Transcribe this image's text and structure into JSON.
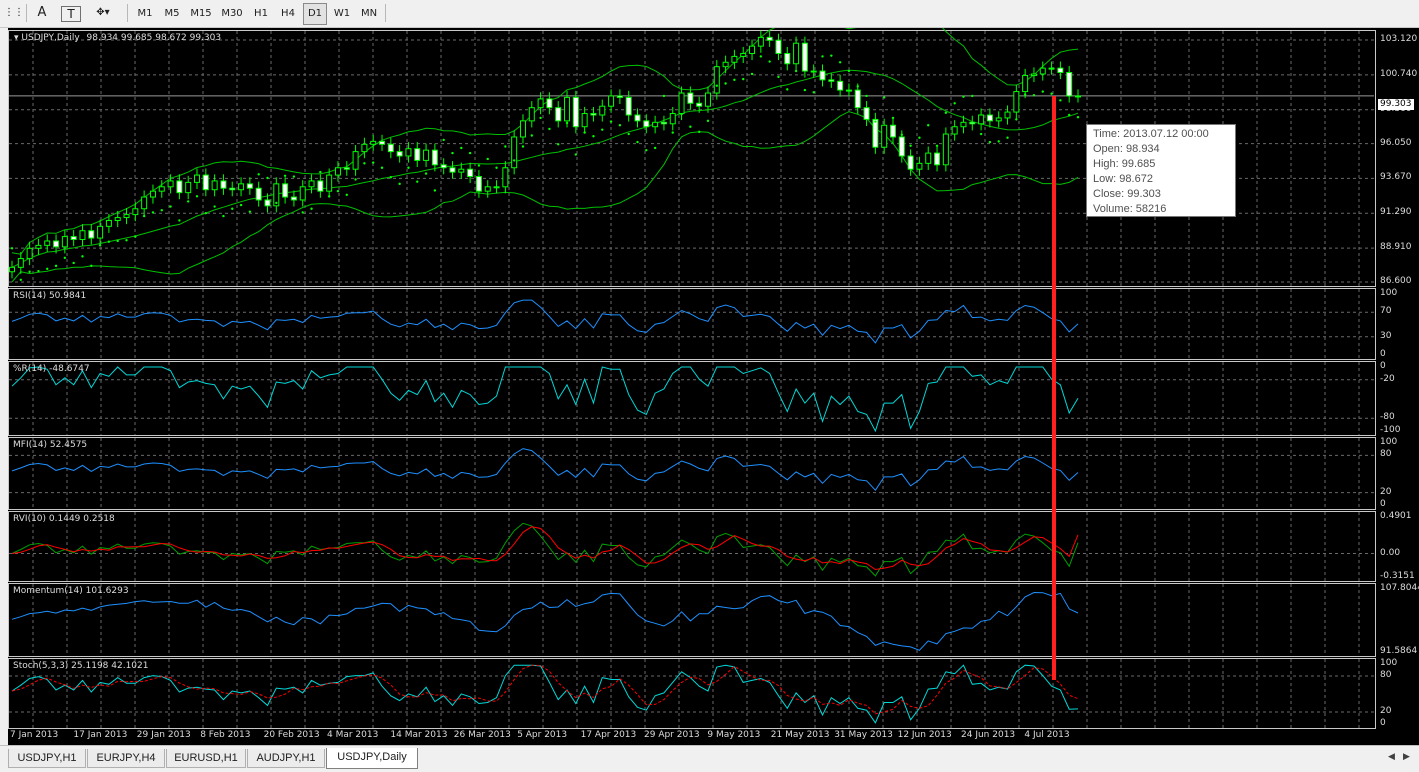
{
  "toolbar": {
    "timeframes": [
      "M1",
      "M5",
      "M15",
      "M30",
      "H1",
      "H4",
      "D1",
      "W1",
      "MN"
    ],
    "active_timeframe": "D1"
  },
  "main_header": {
    "symbol": "USDJPY,Daily",
    "ohlc": "98.934 99.685 98.672 99.303"
  },
  "price_axis": {
    "ticks": [
      "103.120",
      "100.740",
      "98.360",
      "96.050",
      "93.670",
      "91.290",
      "88.910",
      "86.600"
    ],
    "current_price": "99.303"
  },
  "indicators": [
    {
      "label": "RSI(14) 50.9841",
      "ticks": [
        "100",
        "70",
        "30",
        "0"
      ]
    },
    {
      "label": "%R(14) -48.6747",
      "ticks": [
        "0",
        "-20",
        "-80",
        "-100"
      ]
    },
    {
      "label": "MFI(14) 52.4575",
      "ticks": [
        "100",
        "80",
        "20",
        "0"
      ]
    },
    {
      "label": "RVI(10) 0.1449 0.2518",
      "ticks": [
        "0.4901",
        "0.00",
        "-0.3151"
      ]
    },
    {
      "label": "Momentum(14) 101.6293",
      "ticks": [
        "107.8044",
        "91.5864"
      ]
    },
    {
      "label": "Stoch(5,3,3) 25.1198 42.1021",
      "ticks": [
        "100",
        "80",
        "20",
        "0"
      ]
    }
  ],
  "time_axis": [
    "7 Jan 2013",
    "17 Jan 2013",
    "29 Jan 2013",
    "8 Feb 2013",
    "20 Feb 2013",
    "4 Mar 2013",
    "14 Mar 2013",
    "26 Mar 2013",
    "5 Apr 2013",
    "17 Apr 2013",
    "29 Apr 2013",
    "9 May 2013",
    "21 May 2013",
    "31 May 2013",
    "12 Jun 2013",
    "24 Jun 2013",
    "4 Jul 2013"
  ],
  "tooltip": {
    "time": "Time: 2013.07.12 00:00",
    "open": "Open: 98.934",
    "high": "High: 99.685",
    "low": "Low:  98.672",
    "close": "Close: 99.303",
    "volume": "Volume: 58216"
  },
  "tabs": [
    "USDJPY,H1",
    "EURJPY,H4",
    "EURUSD,H1",
    "AUDJPY,H1",
    "USDJPY,Daily"
  ],
  "active_tab": "USDJPY,Daily",
  "colors": {
    "background": "#000000",
    "candle": "#00ff00",
    "bands": "#00c000",
    "rsi_line": "#1e90ff",
    "wpr_line": "#00d8d8",
    "rvi_main": "#00a000",
    "rvi_signal": "#ff0000",
    "stoch_signal": "#ff0000",
    "marker": "#ff2020"
  },
  "chart_data": {
    "type": "candlestick",
    "symbol": "USDJPY",
    "timeframe": "Daily",
    "last_bar": {
      "time": "2013.07.12 00:00",
      "open": 98.934,
      "high": 99.685,
      "low": 98.672,
      "close": 99.303,
      "volume": 58216
    },
    "ylim": [
      86.6,
      103.12
    ],
    "close_approx": [
      87.6,
      88.2,
      88.9,
      89.1,
      89.4,
      89.0,
      89.7,
      89.5,
      90.1,
      89.6,
      90.4,
      90.8,
      91.0,
      91.2,
      91.6,
      92.4,
      92.8,
      93.1,
      93.5,
      92.7,
      93.4,
      93.9,
      92.9,
      93.5,
      93.0,
      92.9,
      93.3,
      93.0,
      92.2,
      91.8,
      93.3,
      92.4,
      92.2,
      93.1,
      93.5,
      92.8,
      93.9,
      94.4,
      94.3,
      95.5,
      96.0,
      96.2,
      96.0,
      95.5,
      95.2,
      95.7,
      94.9,
      95.6,
      94.6,
      94.4,
      94.1,
      94.3,
      93.8,
      92.8,
      93.1,
      93.1,
      94.4,
      96.5,
      97.6,
      98.5,
      99.1,
      98.5,
      97.6,
      99.2,
      97.2,
      98.1,
      98.0,
      98.6,
      99.3,
      99.2,
      98.0,
      97.6,
      97.2,
      97.5,
      97.4,
      98.1,
      99.5,
      98.8,
      98.6,
      99.5,
      101.3,
      101.6,
      102.0,
      102.2,
      102.7,
      103.3,
      103.1,
      102.2,
      101.5,
      102.9,
      101.0,
      101.0,
      100.4,
      100.3,
      99.7,
      99.7,
      98.5,
      97.7,
      95.8,
      97.3,
      96.5,
      95.2,
      94.3,
      94.7,
      95.4,
      94.6,
      96.7,
      97.2,
      97.5,
      97.4,
      98.0,
      97.6,
      97.8,
      98.2,
      99.6,
      100.7,
      100.8,
      101.2,
      101.2,
      100.9,
      99.3,
      99.3
    ],
    "indicators": {
      "RSI": {
        "period": 14,
        "value": 50.9841,
        "range": [
          0,
          100
        ]
      },
      "WPR": {
        "period": 14,
        "value": -48.6747,
        "range": [
          -100,
          0
        ]
      },
      "MFI": {
        "period": 14,
        "value": 52.4575,
        "range": [
          0,
          100
        ]
      },
      "RVI": {
        "period": 10,
        "main": 0.1449,
        "signal": 0.2518,
        "range": [
          -0.3151,
          0.4901
        ]
      },
      "Momentum": {
        "period": 14,
        "value": 101.6293,
        "range": [
          91.5864,
          107.8044
        ]
      },
      "Stochastic": {
        "params": "5,3,3",
        "main": 25.1198,
        "signal": 42.1021,
        "range": [
          0,
          100
        ]
      }
    }
  }
}
